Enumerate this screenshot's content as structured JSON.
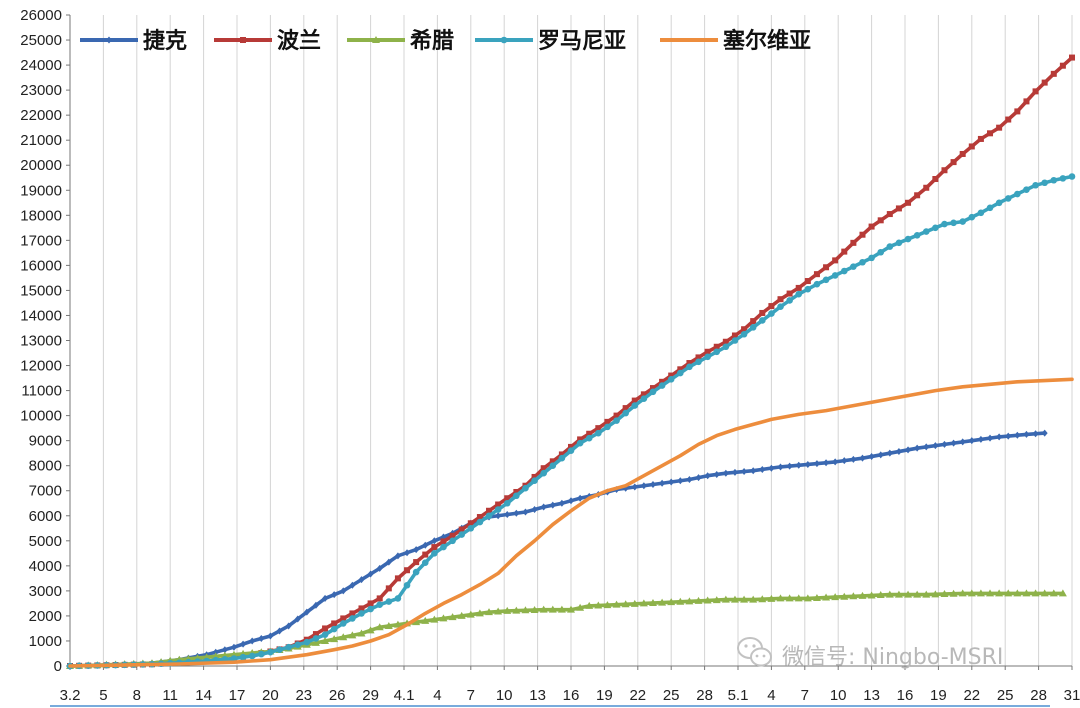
{
  "chart_data": {
    "type": "line",
    "title": "",
    "xlabel": "",
    "ylabel": "",
    "ylim": [
      0,
      26000
    ],
    "y_ticks": [
      0,
      1000,
      2000,
      3000,
      4000,
      5000,
      6000,
      7000,
      8000,
      9000,
      10000,
      11000,
      12000,
      13000,
      14000,
      15000,
      16000,
      17000,
      18000,
      19000,
      20000,
      21000,
      22000,
      23000,
      24000,
      25000,
      26000
    ],
    "x_tick_labels": [
      "3.2",
      "5",
      "8",
      "11",
      "14",
      "17",
      "20",
      "23",
      "26",
      "29",
      "4.1",
      "4",
      "7",
      "10",
      "13",
      "16",
      "19",
      "22",
      "25",
      "28",
      "5.1",
      "4",
      "7",
      "10",
      "13",
      "16",
      "19",
      "22",
      "25",
      "28",
      "31"
    ],
    "grid": "vertical",
    "legend_position": "top-left",
    "series": [
      {
        "name": "捷克",
        "color": "#3a68b1",
        "marker": "diamond",
        "points": [
          [
            0,
            0
          ],
          [
            6,
            50
          ],
          [
            9,
            110
          ],
          [
            12,
            250
          ],
          [
            15,
            450
          ],
          [
            18,
            750
          ],
          [
            20,
            1000
          ],
          [
            22,
            1200
          ],
          [
            24,
            1600
          ],
          [
            26,
            2150
          ],
          [
            28,
            2700
          ],
          [
            30,
            3000
          ],
          [
            32,
            3450
          ],
          [
            34,
            3900
          ],
          [
            36,
            4400
          ],
          [
            38,
            4650
          ],
          [
            40,
            5000
          ],
          [
            42,
            5300
          ],
          [
            44,
            5700
          ],
          [
            46,
            5950
          ],
          [
            48,
            6050
          ],
          [
            50,
            6150
          ],
          [
            52,
            6350
          ],
          [
            54,
            6500
          ],
          [
            56,
            6700
          ],
          [
            58,
            6850
          ],
          [
            60,
            7050
          ],
          [
            62,
            7150
          ],
          [
            64,
            7250
          ],
          [
            66,
            7350
          ],
          [
            68,
            7450
          ],
          [
            70,
            7600
          ],
          [
            72,
            7700
          ],
          [
            75,
            7800
          ],
          [
            78,
            7950
          ],
          [
            81,
            8050
          ],
          [
            84,
            8150
          ],
          [
            87,
            8300
          ],
          [
            90,
            8500
          ],
          [
            93,
            8700
          ],
          [
            96,
            8850
          ],
          [
            99,
            9000
          ],
          [
            102,
            9150
          ],
          [
            105,
            9250
          ],
          [
            107,
            9300
          ]
        ]
      },
      {
        "name": "波兰",
        "color": "#b73a37",
        "marker": "square",
        "points": [
          [
            0,
            0
          ],
          [
            9,
            70
          ],
          [
            12,
            150
          ],
          [
            15,
            200
          ],
          [
            18,
            300
          ],
          [
            20,
            450
          ],
          [
            22,
            580
          ],
          [
            24,
            750
          ],
          [
            26,
            1050
          ],
          [
            28,
            1500
          ],
          [
            30,
            1900
          ],
          [
            32,
            2300
          ],
          [
            34,
            2700
          ],
          [
            36,
            3500
          ],
          [
            38,
            4150
          ],
          [
            40,
            4750
          ],
          [
            42,
            5200
          ],
          [
            44,
            5700
          ],
          [
            46,
            6200
          ],
          [
            48,
            6700
          ],
          [
            50,
            7200
          ],
          [
            52,
            7900
          ],
          [
            54,
            8450
          ],
          [
            56,
            9050
          ],
          [
            58,
            9500
          ],
          [
            60,
            10000
          ],
          [
            62,
            10600
          ],
          [
            64,
            11100
          ],
          [
            66,
            11600
          ],
          [
            68,
            12100
          ],
          [
            70,
            12550
          ],
          [
            72,
            12950
          ],
          [
            74,
            13450
          ],
          [
            76,
            14100
          ],
          [
            78,
            14650
          ],
          [
            80,
            15100
          ],
          [
            82,
            15650
          ],
          [
            84,
            16200
          ],
          [
            86,
            16900
          ],
          [
            88,
            17550
          ],
          [
            90,
            18050
          ],
          [
            92,
            18500
          ],
          [
            94,
            19100
          ],
          [
            96,
            19800
          ],
          [
            98,
            20450
          ],
          [
            100,
            21050
          ],
          [
            102,
            21500
          ],
          [
            104,
            22150
          ],
          [
            106,
            22950
          ],
          [
            108,
            23650
          ],
          [
            110,
            24300
          ]
        ]
      },
      {
        "name": "希腊",
        "color": "#8eb24a",
        "marker": "triangle",
        "points": [
          [
            0,
            0
          ],
          [
            9,
            110
          ],
          [
            12,
            250
          ],
          [
            15,
            350
          ],
          [
            18,
            450
          ],
          [
            20,
            520
          ],
          [
            22,
            580
          ],
          [
            24,
            700
          ],
          [
            26,
            850
          ],
          [
            28,
            1000
          ],
          [
            30,
            1150
          ],
          [
            32,
            1300
          ],
          [
            34,
            1550
          ],
          [
            36,
            1650
          ],
          [
            38,
            1750
          ],
          [
            40,
            1850
          ],
          [
            42,
            1950
          ],
          [
            44,
            2050
          ],
          [
            46,
            2150
          ],
          [
            48,
            2200
          ],
          [
            52,
            2250
          ],
          [
            55,
            2250
          ],
          [
            57,
            2400
          ],
          [
            60,
            2450
          ],
          [
            63,
            2500
          ],
          [
            66,
            2550
          ],
          [
            69,
            2600
          ],
          [
            72,
            2650
          ],
          [
            75,
            2650
          ],
          [
            78,
            2700
          ],
          [
            81,
            2700
          ],
          [
            84,
            2750
          ],
          [
            87,
            2800
          ],
          [
            90,
            2850
          ],
          [
            94,
            2850
          ],
          [
            98,
            2900
          ],
          [
            102,
            2900
          ],
          [
            106,
            2900
          ],
          [
            109,
            2900
          ]
        ]
      },
      {
        "name": "罗马尼亚",
        "color": "#3aa3be",
        "marker": "circle",
        "points": [
          [
            0,
            0
          ],
          [
            9,
            70
          ],
          [
            12,
            130
          ],
          [
            15,
            200
          ],
          [
            18,
            300
          ],
          [
            20,
            400
          ],
          [
            22,
            550
          ],
          [
            24,
            750
          ],
          [
            26,
            950
          ],
          [
            28,
            1250
          ],
          [
            30,
            1700
          ],
          [
            32,
            2100
          ],
          [
            34,
            2450
          ],
          [
            36,
            2700
          ],
          [
            38,
            3750
          ],
          [
            40,
            4500
          ],
          [
            42,
            5000
          ],
          [
            44,
            5500
          ],
          [
            46,
            6000
          ],
          [
            48,
            6500
          ],
          [
            50,
            7100
          ],
          [
            52,
            7700
          ],
          [
            54,
            8300
          ],
          [
            56,
            8900
          ],
          [
            58,
            9300
          ],
          [
            60,
            9800
          ],
          [
            62,
            10400
          ],
          [
            64,
            10950
          ],
          [
            66,
            11450
          ],
          [
            68,
            11950
          ],
          [
            70,
            12350
          ],
          [
            72,
            12750
          ],
          [
            74,
            13250
          ],
          [
            76,
            13800
          ],
          [
            78,
            14350
          ],
          [
            80,
            14850
          ],
          [
            82,
            15250
          ],
          [
            84,
            15600
          ],
          [
            86,
            15950
          ],
          [
            88,
            16300
          ],
          [
            90,
            16750
          ],
          [
            92,
            17050
          ],
          [
            94,
            17350
          ],
          [
            96,
            17650
          ],
          [
            98,
            17750
          ],
          [
            100,
            18100
          ],
          [
            102,
            18500
          ],
          [
            104,
            18850
          ],
          [
            106,
            19200
          ],
          [
            108,
            19400
          ],
          [
            110,
            19550
          ]
        ]
      },
      {
        "name": "塞尔维亚",
        "color": "#ed8d3d",
        "marker": "none",
        "points": [
          [
            0,
            0
          ],
          [
            12,
            80
          ],
          [
            18,
            150
          ],
          [
            22,
            250
          ],
          [
            26,
            450
          ],
          [
            29,
            650
          ],
          [
            31,
            800
          ],
          [
            33,
            1000
          ],
          [
            35,
            1250
          ],
          [
            37,
            1650
          ],
          [
            39,
            2100
          ],
          [
            41,
            2500
          ],
          [
            43,
            2850
          ],
          [
            45,
            3250
          ],
          [
            47,
            3700
          ],
          [
            49,
            4400
          ],
          [
            51,
            5000
          ],
          [
            53,
            5650
          ],
          [
            55,
            6200
          ],
          [
            57,
            6700
          ],
          [
            59,
            7000
          ],
          [
            61,
            7200
          ],
          [
            63,
            7600
          ],
          [
            65,
            8000
          ],
          [
            67,
            8400
          ],
          [
            69,
            8850
          ],
          [
            71,
            9200
          ],
          [
            73,
            9450
          ],
          [
            75,
            9650
          ],
          [
            77,
            9850
          ],
          [
            80,
            10050
          ],
          [
            83,
            10200
          ],
          [
            86,
            10400
          ],
          [
            89,
            10600
          ],
          [
            92,
            10800
          ],
          [
            95,
            11000
          ],
          [
            98,
            11150
          ],
          [
            101,
            11250
          ],
          [
            104,
            11350
          ],
          [
            107,
            11400
          ],
          [
            110,
            11450
          ]
        ]
      }
    ]
  },
  "watermark": {
    "text": "微信号: Ningbo-MSRI",
    "icon": "wechat-icon"
  }
}
